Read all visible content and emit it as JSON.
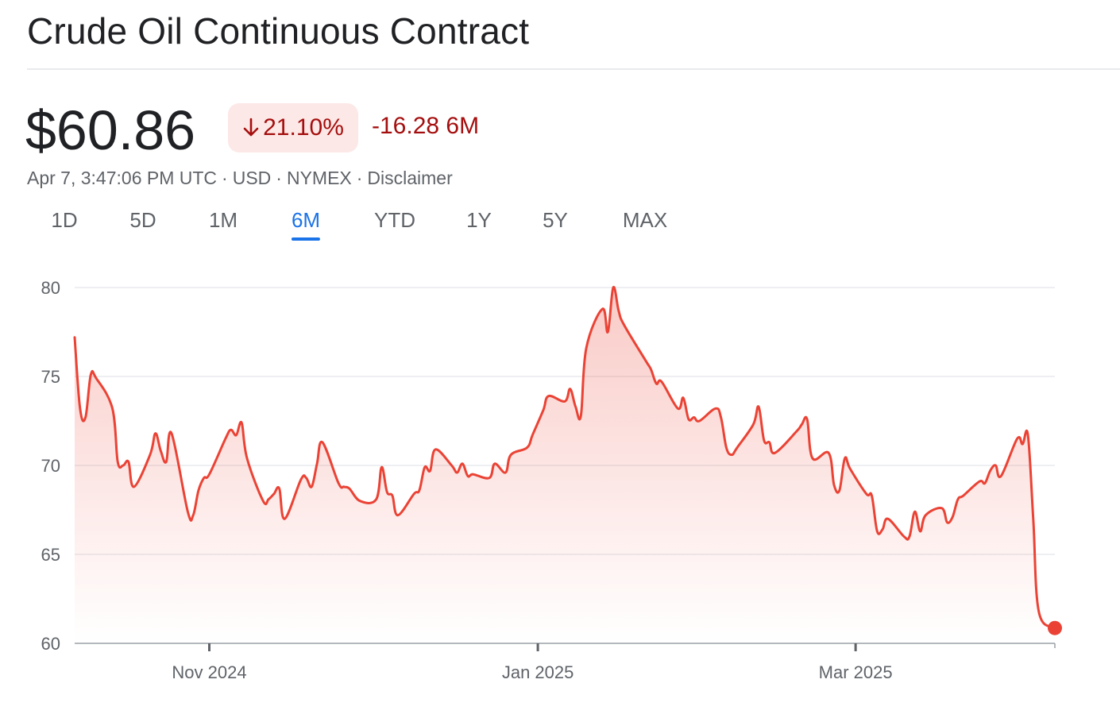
{
  "header": {
    "title": "Crude Oil Continuous Contract"
  },
  "quote": {
    "price": "$60.86",
    "change_pct": "21.10%",
    "change_direction": "down",
    "change_abs": "-16.28",
    "change_period": "6M"
  },
  "meta": {
    "timestamp": "Apr 7, 3:47:06 PM UTC",
    "currency": "USD",
    "exchange": "NYMEX",
    "disclaimer": "Disclaimer"
  },
  "range_tabs": [
    {
      "label": "1D",
      "active": false
    },
    {
      "label": "5D",
      "active": false
    },
    {
      "label": "1M",
      "active": false
    },
    {
      "label": "6M",
      "active": true
    },
    {
      "label": "YTD",
      "active": false
    },
    {
      "label": "1Y",
      "active": false
    },
    {
      "label": "5Y",
      "active": false
    },
    {
      "label": "MAX",
      "active": false
    }
  ],
  "colors": {
    "negative": "#a50e0e",
    "negative_bg": "#fce8e6",
    "line": "#ea4335",
    "accent": "#1a73e8"
  },
  "chart_data": {
    "type": "area",
    "title": "",
    "xlabel": "",
    "ylabel": "",
    "ylim": [
      60,
      80
    ],
    "yticks": [
      80,
      75,
      70,
      65,
      60
    ],
    "x_axis_labels": [
      "Nov 2024",
      "Jan 2025",
      "Mar 2025"
    ],
    "xlim": [
      "2024-10-07",
      "2025-04-07"
    ],
    "grid": true,
    "series": [
      {
        "values": [
          [
            "2024-10-07",
            77.2
          ],
          [
            "2024-10-08",
            73.2
          ],
          [
            "2024-10-09",
            72.7
          ],
          [
            "2024-10-10",
            75.1
          ],
          [
            "2024-10-11",
            74.9
          ],
          [
            "2024-10-14",
            73.2
          ],
          [
            "2024-10-15",
            70.2
          ],
          [
            "2024-10-16",
            70.0
          ],
          [
            "2024-10-17",
            70.2
          ],
          [
            "2024-10-18",
            68.8
          ],
          [
            "2024-10-21",
            70.6
          ],
          [
            "2024-10-22",
            71.8
          ],
          [
            "2024-10-23",
            70.8
          ],
          [
            "2024-10-24",
            70.2
          ],
          [
            "2024-10-25",
            71.8
          ],
          [
            "2024-10-28",
            67.4
          ],
          [
            "2024-10-29",
            67.2
          ],
          [
            "2024-10-30",
            68.6
          ],
          [
            "2024-10-31",
            69.3
          ],
          [
            "2024-11-01",
            69.5
          ],
          [
            "2024-11-04",
            71.5
          ],
          [
            "2024-11-05",
            72.0
          ],
          [
            "2024-11-06",
            71.7
          ],
          [
            "2024-11-07",
            72.4
          ],
          [
            "2024-11-08",
            70.4
          ],
          [
            "2024-11-11",
            68.0
          ],
          [
            "2024-11-12",
            68.1
          ],
          [
            "2024-11-13",
            68.4
          ],
          [
            "2024-11-14",
            68.7
          ],
          [
            "2024-11-15",
            67.0
          ],
          [
            "2024-11-18",
            69.2
          ],
          [
            "2024-11-19",
            69.3
          ],
          [
            "2024-11-20",
            68.8
          ],
          [
            "2024-11-21",
            70.1
          ],
          [
            "2024-11-22",
            71.3
          ],
          [
            "2024-11-25",
            69.0
          ],
          [
            "2024-11-26",
            68.8
          ],
          [
            "2024-11-27",
            68.7
          ],
          [
            "2024-11-29",
            68.0
          ],
          [
            "2024-12-02",
            68.1
          ],
          [
            "2024-12-03",
            69.9
          ],
          [
            "2024-12-04",
            68.5
          ],
          [
            "2024-12-05",
            68.3
          ],
          [
            "2024-12-06",
            67.2
          ],
          [
            "2024-12-09",
            68.4
          ],
          [
            "2024-12-10",
            68.6
          ],
          [
            "2024-12-11",
            69.9
          ],
          [
            "2024-12-12",
            69.7
          ],
          [
            "2024-12-13",
            70.9
          ],
          [
            "2024-12-16",
            70.0
          ],
          [
            "2024-12-17",
            69.6
          ],
          [
            "2024-12-18",
            70.1
          ],
          [
            "2024-12-19",
            69.4
          ],
          [
            "2024-12-20",
            69.5
          ],
          [
            "2024-12-23",
            69.3
          ],
          [
            "2024-12-24",
            70.1
          ],
          [
            "2024-12-26",
            69.6
          ],
          [
            "2024-12-27",
            70.6
          ],
          [
            "2024-12-30",
            71.0
          ],
          [
            "2024-12-31",
            71.7
          ],
          [
            "2025-01-02",
            73.1
          ],
          [
            "2025-01-03",
            73.9
          ],
          [
            "2025-01-06",
            73.6
          ],
          [
            "2025-01-07",
            74.3
          ],
          [
            "2025-01-08",
            73.3
          ],
          [
            "2025-01-09",
            72.8
          ],
          [
            "2025-01-10",
            76.6
          ],
          [
            "2025-01-13",
            78.8
          ],
          [
            "2025-01-14",
            77.5
          ],
          [
            "2025-01-15",
            80.0
          ],
          [
            "2025-01-16",
            78.7
          ],
          [
            "2025-01-17",
            77.9
          ],
          [
            "2025-01-21",
            75.9
          ],
          [
            "2025-01-22",
            75.4
          ],
          [
            "2025-01-23",
            74.6
          ],
          [
            "2025-01-24",
            74.7
          ],
          [
            "2025-01-27",
            73.2
          ],
          [
            "2025-01-28",
            73.8
          ],
          [
            "2025-01-29",
            72.6
          ],
          [
            "2025-01-30",
            72.7
          ],
          [
            "2025-01-31",
            72.5
          ],
          [
            "2025-02-03",
            73.2
          ],
          [
            "2025-02-04",
            72.7
          ],
          [
            "2025-02-05",
            71.0
          ],
          [
            "2025-02-06",
            70.6
          ],
          [
            "2025-02-07",
            71.0
          ],
          [
            "2025-02-10",
            72.3
          ],
          [
            "2025-02-11",
            73.3
          ],
          [
            "2025-02-12",
            71.4
          ],
          [
            "2025-02-13",
            71.3
          ],
          [
            "2025-02-14",
            70.7
          ],
          [
            "2025-02-18",
            71.9
          ],
          [
            "2025-02-19",
            72.3
          ],
          [
            "2025-02-20",
            72.6
          ],
          [
            "2025-02-21",
            70.4
          ],
          [
            "2025-02-24",
            70.7
          ],
          [
            "2025-02-25",
            68.9
          ],
          [
            "2025-02-26",
            68.6
          ],
          [
            "2025-02-27",
            70.4
          ],
          [
            "2025-02-28",
            69.8
          ],
          [
            "2025-03-03",
            68.4
          ],
          [
            "2025-03-04",
            68.3
          ],
          [
            "2025-03-05",
            66.3
          ],
          [
            "2025-03-06",
            66.4
          ],
          [
            "2025-03-07",
            67.0
          ],
          [
            "2025-03-10",
            66.0
          ],
          [
            "2025-03-11",
            66.0
          ],
          [
            "2025-03-12",
            67.4
          ],
          [
            "2025-03-13",
            66.3
          ],
          [
            "2025-03-14",
            67.2
          ],
          [
            "2025-03-17",
            67.6
          ],
          [
            "2025-03-18",
            66.8
          ],
          [
            "2025-03-19",
            67.1
          ],
          [
            "2025-03-20",
            68.1
          ],
          [
            "2025-03-21",
            68.3
          ],
          [
            "2025-03-24",
            69.1
          ],
          [
            "2025-03-25",
            69.0
          ],
          [
            "2025-03-26",
            69.7
          ],
          [
            "2025-03-27",
            70.0
          ],
          [
            "2025-03-28",
            69.4
          ],
          [
            "2025-03-31",
            71.5
          ],
          [
            "2025-04-01",
            71.2
          ],
          [
            "2025-04-02",
            71.7
          ],
          [
            "2025-04-03",
            66.9
          ],
          [
            "2025-04-04",
            61.8
          ],
          [
            "2025-04-07",
            60.86
          ]
        ]
      }
    ]
  }
}
